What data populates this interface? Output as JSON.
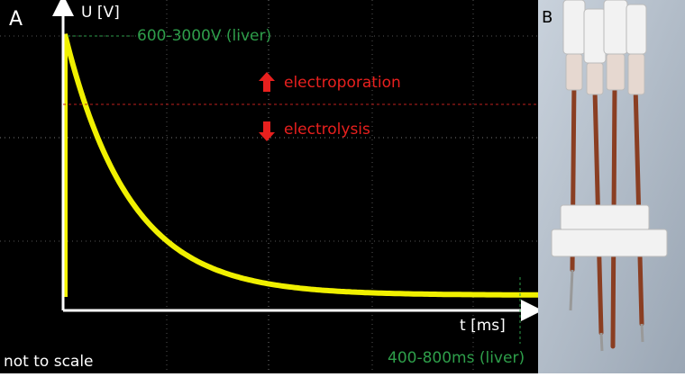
{
  "panel_a": {
    "label": "A",
    "y_axis_label": "U [V]",
    "voltage_note": "600-3000V (liver)",
    "above_label": "electroporation",
    "below_label": "electrolysis",
    "x_axis_label": "t [ms]",
    "scale_note": "not to scale",
    "time_note": "400-800ms (liver)"
  },
  "panel_b": {
    "label": "B"
  }
}
